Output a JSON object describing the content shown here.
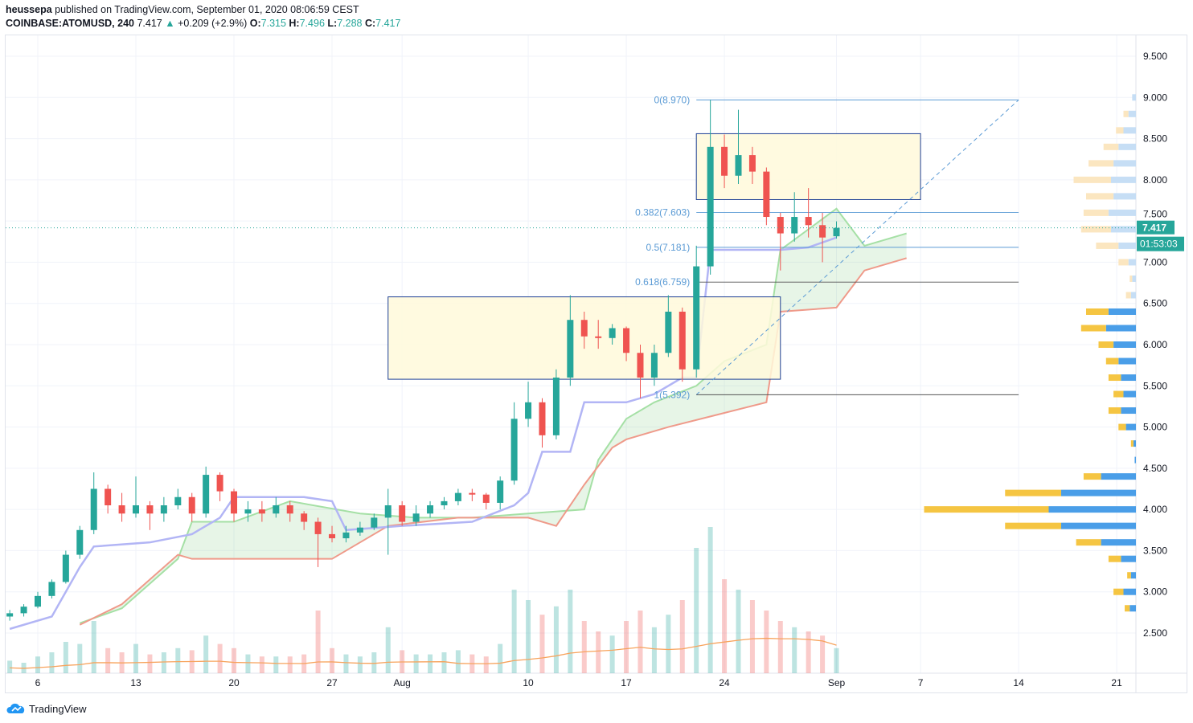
{
  "header": {
    "author": "heussepa",
    "published_text": "published on TradingView.com, September 01, 2020 08:06:59 CEST",
    "symbol": "COINBASE:ATOMUSD, 240",
    "last": "7.417",
    "change": "+0.209 (+2.9%)",
    "o_label": "O:",
    "o": "7.315",
    "h_label": "H:",
    "h": "7.496",
    "l_label": "L:",
    "l": "7.288",
    "c_label": "C:",
    "c": "7.417"
  },
  "price_badge": "7.417",
  "countdown_badge": "01:53:03",
  "footer": {
    "brand": "TradingView"
  },
  "colors": {
    "up": "#26a69a",
    "down": "#ef5350",
    "fib": "#5b9bd5",
    "rect_fill": "#fff9db",
    "rect_border": "#1c3f94",
    "kijun": "#b2b5f5",
    "span_a": "#a5e0a5",
    "span_b": "#ef9a8a",
    "vol_ma": "#f7a35c",
    "badge": "#26a69a"
  },
  "chart_data": {
    "type": "candlestick",
    "ylim": [
      2.2,
      9.8
    ],
    "y_ticks": [
      "2.500",
      "3.000",
      "3.500",
      "4.000",
      "4.500",
      "5.000",
      "5.500",
      "6.000",
      "6.500",
      "7.000",
      "7.500",
      "8.000",
      "8.500",
      "9.000",
      "9.500"
    ],
    "x_ticks": [
      {
        "date": "2020-07-06",
        "label": "6"
      },
      {
        "date": "2020-07-13",
        "label": "13"
      },
      {
        "date": "2020-07-20",
        "label": "20"
      },
      {
        "date": "2020-07-27",
        "label": "27"
      },
      {
        "date": "2020-08-01",
        "label": "Aug"
      },
      {
        "date": "2020-08-10",
        "label": "10"
      },
      {
        "date": "2020-08-17",
        "label": "17"
      },
      {
        "date": "2020-08-24",
        "label": "24"
      },
      {
        "date": "2020-09-01",
        "label": "Sep"
      },
      {
        "date": "2020-09-07",
        "label": "7"
      },
      {
        "date": "2020-09-14",
        "label": "14"
      },
      {
        "date": "2020-09-21",
        "label": "21"
      }
    ],
    "start_date": "2020-07-04",
    "candles": [
      [
        2.7,
        2.78,
        2.65,
        2.74
      ],
      [
        2.74,
        2.85,
        2.7,
        2.82
      ],
      [
        2.82,
        3.0,
        2.8,
        2.95
      ],
      [
        2.95,
        3.15,
        2.92,
        3.12
      ],
      [
        3.12,
        3.5,
        3.1,
        3.45
      ],
      [
        3.45,
        3.8,
        3.4,
        3.75
      ],
      [
        3.75,
        4.45,
        3.7,
        4.25
      ],
      [
        4.25,
        4.3,
        3.95,
        4.05
      ],
      [
        4.05,
        4.2,
        3.85,
        3.95
      ],
      [
        3.95,
        4.4,
        3.9,
        4.05
      ],
      [
        4.05,
        4.1,
        3.75,
        3.95
      ],
      [
        3.95,
        4.15,
        3.85,
        4.05
      ],
      [
        4.05,
        4.25,
        4.0,
        4.15
      ],
      [
        4.15,
        4.2,
        3.85,
        3.95
      ],
      [
        3.95,
        4.52,
        3.9,
        4.42
      ],
      [
        4.42,
        4.45,
        4.1,
        4.22
      ],
      [
        4.22,
        4.25,
        3.85,
        3.95
      ],
      [
        3.95,
        4.1,
        3.85,
        4.0
      ],
      [
        4.0,
        4.1,
        3.85,
        3.95
      ],
      [
        3.95,
        4.15,
        3.9,
        4.05
      ],
      [
        4.05,
        4.1,
        3.85,
        3.95
      ],
      [
        3.95,
        3.98,
        3.75,
        3.85
      ],
      [
        3.85,
        3.9,
        3.3,
        3.7
      ],
      [
        3.7,
        3.8,
        3.6,
        3.65
      ],
      [
        3.65,
        3.8,
        3.6,
        3.72
      ],
      [
        3.72,
        3.85,
        3.68,
        3.78
      ],
      [
        3.78,
        3.95,
        3.75,
        3.9
      ],
      [
        3.9,
        4.25,
        3.45,
        4.05
      ],
      [
        4.05,
        4.1,
        3.8,
        3.85
      ],
      [
        3.85,
        4.05,
        3.8,
        3.95
      ],
      [
        3.95,
        4.1,
        3.9,
        4.05
      ],
      [
        4.05,
        4.15,
        4.0,
        4.1
      ],
      [
        4.1,
        4.25,
        4.05,
        4.2
      ],
      [
        4.2,
        4.25,
        4.1,
        4.18
      ],
      [
        4.18,
        4.2,
        4.0,
        4.08
      ],
      [
        4.08,
        4.4,
        4.0,
        4.35
      ],
      [
        4.35,
        5.3,
        4.3,
        5.1
      ],
      [
        5.1,
        5.55,
        5.0,
        5.3
      ],
      [
        5.3,
        5.35,
        4.75,
        4.9
      ],
      [
        4.9,
        5.7,
        4.85,
        5.6
      ],
      [
        5.6,
        6.6,
        5.5,
        6.3
      ],
      [
        6.3,
        6.4,
        5.95,
        6.1
      ],
      [
        6.1,
        6.3,
        5.95,
        6.08
      ],
      [
        6.08,
        6.25,
        6.0,
        6.2
      ],
      [
        6.2,
        6.22,
        5.8,
        5.9
      ],
      [
        5.9,
        6.0,
        5.35,
        5.6
      ],
      [
        5.6,
        6.0,
        5.5,
        5.9
      ],
      [
        5.9,
        6.6,
        5.85,
        6.4
      ],
      [
        6.4,
        6.45,
        5.55,
        5.7
      ],
      [
        5.7,
        7.2,
        5.6,
        6.95
      ],
      [
        6.95,
        8.97,
        6.85,
        8.4
      ],
      [
        8.4,
        8.55,
        7.9,
        8.05
      ],
      [
        8.05,
        8.85,
        7.95,
        8.3
      ],
      [
        8.3,
        8.4,
        7.95,
        8.1
      ],
      [
        8.1,
        8.15,
        7.45,
        7.55
      ],
      [
        7.55,
        7.6,
        6.9,
        7.35
      ],
      [
        7.35,
        7.85,
        7.25,
        7.55
      ],
      [
        7.55,
        7.9,
        7.3,
        7.45
      ],
      [
        7.45,
        7.6,
        7.0,
        7.3
      ],
      [
        7.315,
        7.496,
        7.288,
        7.417
      ]
    ],
    "volume": [
      6,
      5,
      8,
      10,
      15,
      14,
      25,
      12,
      10,
      14,
      9,
      10,
      12,
      11,
      18,
      14,
      12,
      9,
      8,
      8,
      8,
      9,
      30,
      12,
      9,
      8,
      10,
      22,
      11,
      9,
      9,
      10,
      11,
      9,
      8,
      14,
      40,
      35,
      28,
      32,
      40,
      25,
      20,
      18,
      25,
      30,
      22,
      28,
      35,
      60,
      70,
      45,
      40,
      35,
      30,
      25,
      22,
      20,
      18,
      12
    ],
    "kijun": [
      [
        "2020-07-04",
        2.55
      ],
      [
        "2020-07-07",
        2.7
      ],
      [
        "2020-07-09",
        3.3
      ],
      [
        "2020-07-10",
        3.55
      ],
      [
        "2020-07-14",
        3.6
      ],
      [
        "2020-07-17",
        3.7
      ],
      [
        "2020-07-19",
        3.9
      ],
      [
        "2020-07-20",
        4.15
      ],
      [
        "2020-07-25",
        4.15
      ],
      [
        "2020-07-27",
        4.1
      ],
      [
        "2020-07-28",
        3.75
      ],
      [
        "2020-08-01",
        3.8
      ],
      [
        "2020-08-06",
        3.85
      ],
      [
        "2020-08-09",
        4.05
      ],
      [
        "2020-08-10",
        4.2
      ],
      [
        "2020-08-11",
        4.7
      ],
      [
        "2020-08-13",
        4.7
      ],
      [
        "2020-08-14",
        5.3
      ],
      [
        "2020-08-17",
        5.3
      ],
      [
        "2020-08-19",
        5.4
      ],
      [
        "2020-08-21",
        5.6
      ],
      [
        "2020-08-22",
        5.6
      ],
      [
        "2020-08-23",
        7.15
      ],
      [
        "2020-08-28",
        7.15
      ],
      [
        "2020-08-30",
        7.18
      ],
      [
        "2020-09-01",
        7.3
      ]
    ],
    "span_a": [
      [
        "2020-07-09",
        2.62
      ],
      [
        "2020-07-12",
        2.8
      ],
      [
        "2020-07-14",
        3.1
      ],
      [
        "2020-07-16",
        3.4
      ],
      [
        "2020-07-17",
        3.85
      ],
      [
        "2020-07-20",
        3.85
      ],
      [
        "2020-07-24",
        4.1
      ],
      [
        "2020-07-29",
        3.95
      ],
      [
        "2020-08-02",
        3.9
      ],
      [
        "2020-08-06",
        3.9
      ],
      [
        "2020-08-10",
        3.95
      ],
      [
        "2020-08-14",
        4.0
      ],
      [
        "2020-08-15",
        4.6
      ],
      [
        "2020-08-17",
        5.1
      ],
      [
        "2020-08-19",
        5.3
      ],
      [
        "2020-08-22",
        5.5
      ],
      [
        "2020-08-24",
        5.8
      ],
      [
        "2020-08-27",
        6.0
      ],
      [
        "2020-08-28",
        7.15
      ],
      [
        "2020-09-01",
        7.65
      ],
      [
        "2020-09-03",
        7.2
      ],
      [
        "2020-09-06",
        7.35
      ]
    ],
    "span_b": [
      [
        "2020-07-09",
        2.6
      ],
      [
        "2020-07-12",
        2.85
      ],
      [
        "2020-07-16",
        3.45
      ],
      [
        "2020-07-17",
        3.4
      ],
      [
        "2020-07-27",
        3.4
      ],
      [
        "2020-07-31",
        3.8
      ],
      [
        "2020-08-05",
        3.9
      ],
      [
        "2020-08-10",
        3.9
      ],
      [
        "2020-08-12",
        3.8
      ],
      [
        "2020-08-14",
        4.3
      ],
      [
        "2020-08-16",
        4.75
      ],
      [
        "2020-08-17",
        4.85
      ],
      [
        "2020-08-20",
        5.0
      ],
      [
        "2020-08-27",
        5.3
      ],
      [
        "2020-08-28",
        6.4
      ],
      [
        "2020-09-01",
        6.45
      ],
      [
        "2020-09-03",
        6.9
      ],
      [
        "2020-09-06",
        7.05
      ]
    ],
    "fib": {
      "start_date": "2020-08-22",
      "end_date": "2020-09-14",
      "levels": [
        {
          "label": "0(8.970)",
          "price": 8.97
        },
        {
          "label": "0.382(7.603)",
          "price": 7.603
        },
        {
          "label": "0.5(7.181)",
          "price": 7.181
        },
        {
          "label": "0.618(6.759)",
          "price": 6.759
        },
        {
          "label": "1(5.392)",
          "price": 5.392
        }
      ]
    },
    "rectangles": [
      {
        "from": "2020-07-31",
        "to": "2020-08-28",
        "top": 6.58,
        "bottom": 5.58
      },
      {
        "from": "2020-08-22",
        "to": "2020-09-07",
        "top": 8.56,
        "bottom": 7.76
      }
    ],
    "volume_profile": [
      [
        9.0,
        0,
        3
      ],
      [
        8.8,
        4,
        6
      ],
      [
        8.6,
        6,
        10
      ],
      [
        8.4,
        12,
        14
      ],
      [
        8.2,
        20,
        18
      ],
      [
        8.0,
        30,
        20
      ],
      [
        7.8,
        22,
        18
      ],
      [
        7.6,
        20,
        22
      ],
      [
        7.4,
        24,
        20
      ],
      [
        7.2,
        18,
        14
      ],
      [
        7.0,
        8,
        6
      ],
      [
        6.8,
        2,
        3
      ],
      [
        6.6,
        4,
        4
      ],
      [
        6.4,
        18,
        22
      ],
      [
        6.2,
        20,
        24
      ],
      [
        6.0,
        12,
        18
      ],
      [
        5.8,
        10,
        14
      ],
      [
        5.6,
        10,
        12
      ],
      [
        5.4,
        8,
        10
      ],
      [
        5.2,
        10,
        12
      ],
      [
        5.0,
        6,
        8
      ],
      [
        4.8,
        2,
        2
      ],
      [
        4.6,
        0,
        1
      ],
      [
        4.4,
        14,
        28
      ],
      [
        4.2,
        45,
        60
      ],
      [
        4.0,
        100,
        70
      ],
      [
        3.8,
        45,
        60
      ],
      [
        3.6,
        20,
        28
      ],
      [
        3.4,
        10,
        12
      ],
      [
        3.2,
        3,
        4
      ],
      [
        3.0,
        8,
        10
      ],
      [
        2.8,
        4,
        5
      ]
    ]
  }
}
